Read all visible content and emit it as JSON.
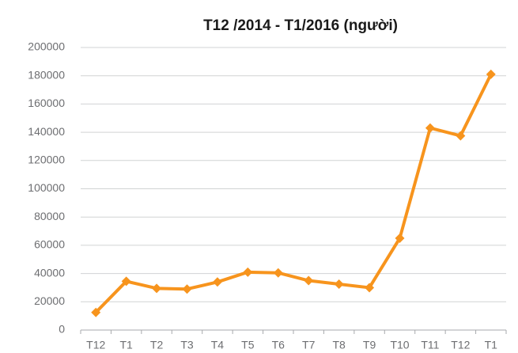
{
  "chart_data": {
    "type": "line",
    "title": "T12 /2014 - T1/2016 (người)",
    "categories": [
      "T12",
      "T1",
      "T2",
      "T3",
      "T4",
      "T5",
      "T6",
      "T7",
      "T8",
      "T9",
      "T10",
      "T11",
      "T12",
      "T1"
    ],
    "series": [
      {
        "name": "",
        "color": "#f7941d",
        "values": [
          12500,
          34500,
          29500,
          29000,
          34000,
          41000,
          40500,
          35000,
          32500,
          30000,
          65000,
          143000,
          137500,
          181000
        ]
      }
    ],
    "ylim": [
      0,
      200000
    ],
    "yticks": [
      0,
      20000,
      40000,
      60000,
      80000,
      100000,
      120000,
      140000,
      160000,
      180000,
      200000
    ],
    "grid": true
  }
}
